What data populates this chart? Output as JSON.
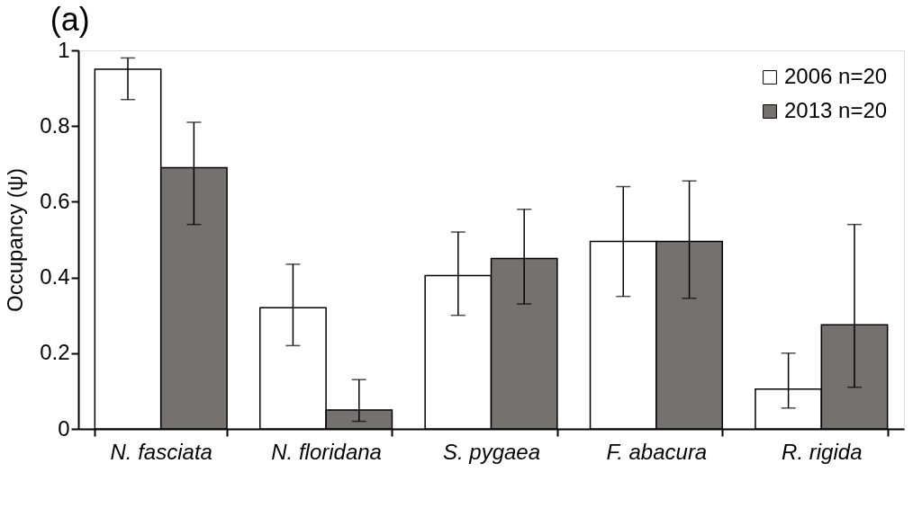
{
  "chart_data": {
    "type": "bar",
    "annotations": [
      "(a)"
    ],
    "ylabel": "Occupancy (ψ)",
    "categories": [
      "N. fasciata",
      "N. floridana",
      "S. pygaea",
      "F. abacura",
      "R. rigida"
    ],
    "series": [
      {
        "name": "2006 n=20",
        "color": "#ffffff",
        "values": [
          0.95,
          0.32,
          0.405,
          0.495,
          0.105
        ],
        "errors": [
          [
            0.87,
            0.98
          ],
          [
            0.22,
            0.435
          ],
          [
            0.3,
            0.52
          ],
          [
            0.35,
            0.64
          ],
          [
            0.055,
            0.2
          ]
        ]
      },
      {
        "name": "2013 n=20",
        "color": "#767171",
        "values": [
          0.69,
          0.05,
          0.45,
          0.495,
          0.275
        ],
        "errors": [
          [
            0.54,
            0.81
          ],
          [
            0.02,
            0.13
          ],
          [
            0.33,
            0.58
          ],
          [
            0.345,
            0.655
          ],
          [
            0.11,
            0.54
          ]
        ]
      }
    ],
    "ylim": [
      0,
      1
    ],
    "yticks": [
      0,
      0.2,
      0.4,
      0.6,
      0.8,
      1
    ],
    "grid": false,
    "legend": "top right"
  }
}
